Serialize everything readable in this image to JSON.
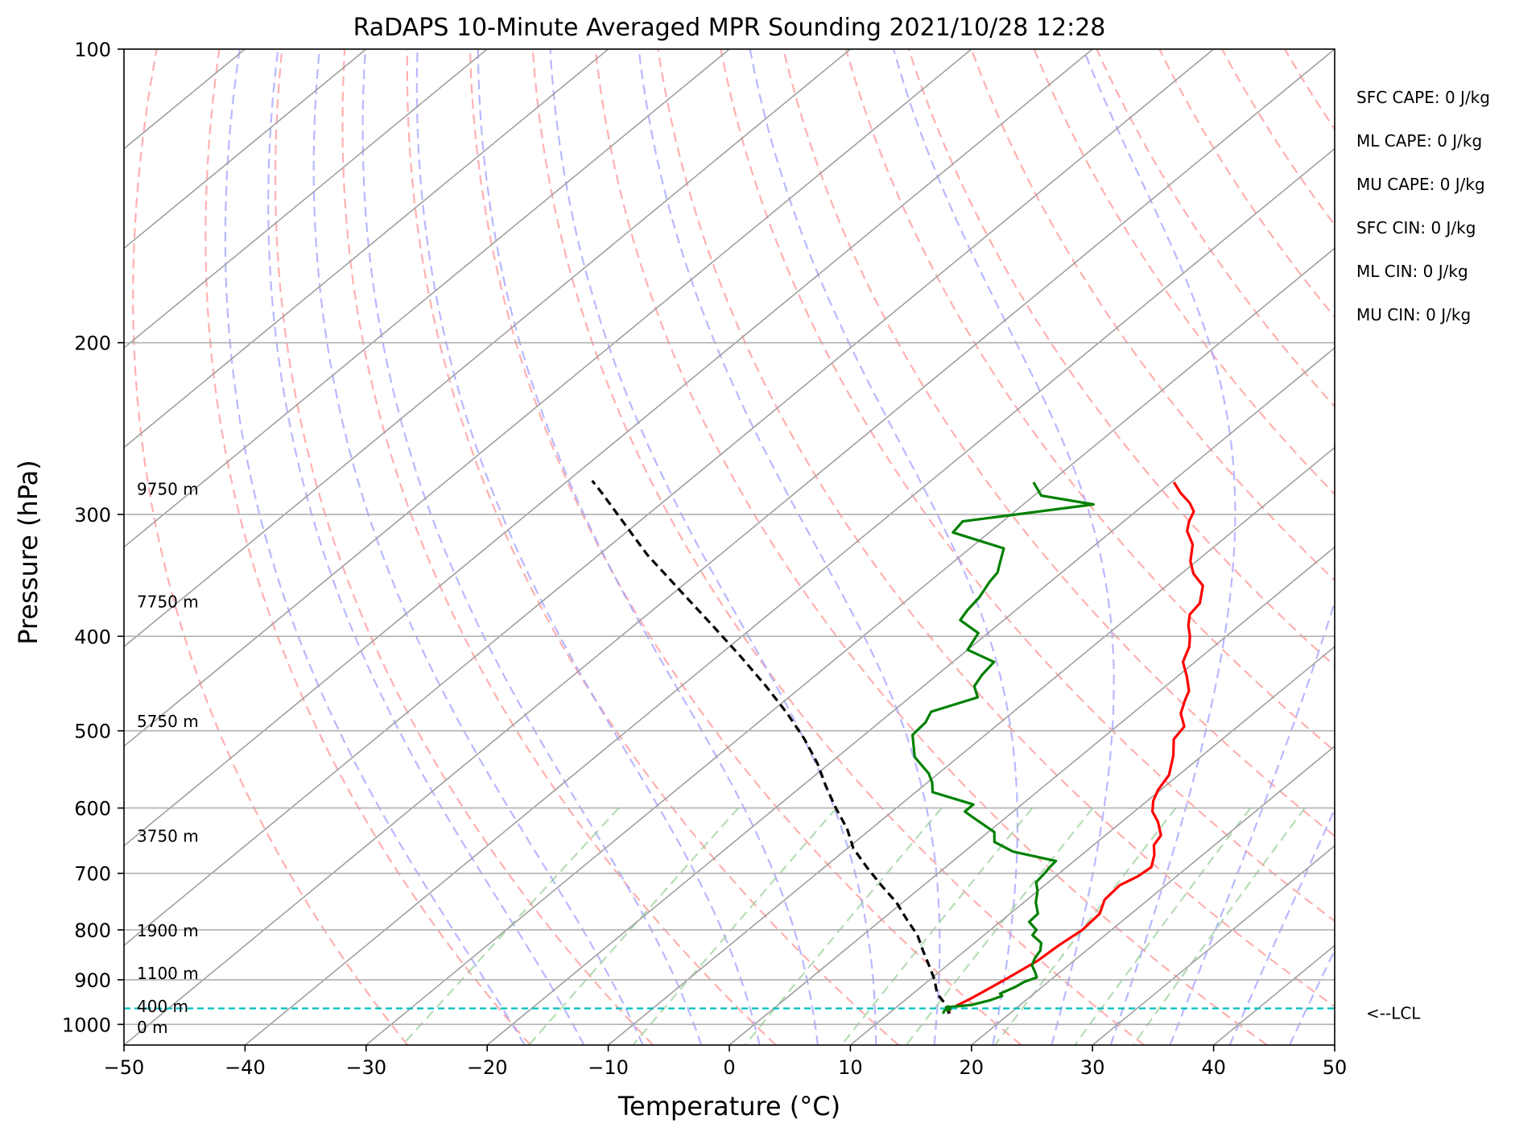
{
  "chart_data": {
    "type": "line",
    "title": "RaDAPS 10-Minute Averaged MPR Sounding 2021/10/28 12:28",
    "xlabel": "Temperature (°C)",
    "ylabel": "Pressure (hPa)",
    "xlim": [
      -50,
      50
    ],
    "ylim": [
      1050,
      100
    ],
    "y_scale": "log",
    "grid": true,
    "x_ticks": [
      -50,
      -40,
      -30,
      -20,
      -10,
      0,
      10,
      20,
      30,
      40,
      50
    ],
    "x_tick_labels": [
      "−50",
      "−40",
      "−30",
      "−20",
      "−10",
      "0",
      "10",
      "20",
      "30",
      "40",
      "50"
    ],
    "y_ticks": [
      100,
      200,
      300,
      400,
      500,
      600,
      700,
      800,
      900,
      1000
    ],
    "y_tick_labels": [
      "100",
      "200",
      "300",
      "400",
      "500",
      "600",
      "700",
      "800",
      "900",
      "1000"
    ],
    "skew": 1.0,
    "series": [
      {
        "role": "temperature",
        "color": "#ff0000",
        "points": [
          [
            15.0,
            975
          ],
          [
            14.6,
            965
          ],
          [
            15.3,
            940
          ],
          [
            16.2,
            900
          ],
          [
            17.0,
            860
          ],
          [
            17.2,
            830
          ],
          [
            17.6,
            800
          ],
          [
            17.4,
            770
          ],
          [
            16.4,
            745
          ],
          [
            16.2,
            720
          ],
          [
            16.8,
            705
          ],
          [
            17.0,
            690
          ],
          [
            16.0,
            670
          ],
          [
            15.0,
            655
          ],
          [
            14.6,
            640
          ],
          [
            13.0,
            620
          ],
          [
            11.5,
            605
          ],
          [
            10.5,
            590
          ],
          [
            9.8,
            575
          ],
          [
            9.2,
            555
          ],
          [
            7.6,
            530
          ],
          [
            6.0,
            510
          ],
          [
            5.6,
            495
          ],
          [
            4.0,
            480
          ],
          [
            3.0,
            465
          ],
          [
            2.4,
            455
          ],
          [
            0.8,
            440
          ],
          [
            -1.0,
            425
          ],
          [
            -2.0,
            410
          ],
          [
            -3.0,
            400
          ],
          [
            -4.2,
            390
          ],
          [
            -5.2,
            380
          ],
          [
            -5.5,
            370
          ],
          [
            -7.0,
            355
          ],
          [
            -9.0,
            345
          ],
          [
            -10.5,
            335
          ],
          [
            -12.0,
            322
          ],
          [
            -13.8,
            312
          ],
          [
            -14.6,
            305
          ],
          [
            -15.2,
            298
          ],
          [
            -16.4,
            292
          ],
          [
            -18.2,
            285
          ],
          [
            -19.8,
            278
          ]
        ]
      },
      {
        "role": "dewpoint",
        "color": "#008000",
        "points": [
          [
            14.5,
            975
          ],
          [
            14.3,
            968
          ],
          [
            14.3,
            965
          ],
          [
            14.3,
            960
          ],
          [
            16.0,
            955
          ],
          [
            17.0,
            945
          ],
          [
            17.6,
            935
          ],
          [
            17.2,
            930
          ],
          [
            17.8,
            915
          ],
          [
            18.0,
            905
          ],
          [
            18.6,
            895
          ],
          [
            18.0,
            885
          ],
          [
            17.0,
            870
          ],
          [
            16.5,
            855
          ],
          [
            16.2,
            840
          ],
          [
            15.5,
            825
          ],
          [
            14.0,
            810
          ],
          [
            13.8,
            800
          ],
          [
            12.4,
            785
          ],
          [
            12.3,
            770
          ],
          [
            11.0,
            750
          ],
          [
            10.0,
            730
          ],
          [
            9.0,
            715
          ],
          [
            8.8,
            700
          ],
          [
            8.6,
            690
          ],
          [
            8.5,
            680
          ],
          [
            4.0,
            665
          ],
          [
            1.5,
            650
          ],
          [
            0.5,
            635
          ],
          [
            -2.5,
            615
          ],
          [
            -4.0,
            605
          ],
          [
            -4.0,
            595
          ],
          [
            -8.6,
            578
          ],
          [
            -9.6,
            565
          ],
          [
            -10.8,
            553
          ],
          [
            -13.6,
            532
          ],
          [
            -16.0,
            505
          ],
          [
            -16.2,
            490
          ],
          [
            -16.8,
            478
          ],
          [
            -14.4,
            462
          ],
          [
            -15.8,
            450
          ],
          [
            -16.3,
            438
          ],
          [
            -16.6,
            425
          ],
          [
            -20.0,
            413
          ],
          [
            -20.8,
            397
          ],
          [
            -23.6,
            385
          ],
          [
            -24.0,
            376
          ],
          [
            -24.3,
            365
          ],
          [
            -25.0,
            352
          ],
          [
            -25.3,
            344
          ],
          [
            -26.2,
            335
          ],
          [
            -27.2,
            325
          ],
          [
            -33.0,
            313
          ],
          [
            -33.3,
            305
          ],
          [
            -24.2,
            293
          ],
          [
            -29.4,
            287
          ],
          [
            -31.4,
            278
          ]
        ]
      },
      {
        "role": "parcel",
        "color": "#000000",
        "dashed": true,
        "points": [
          [
            15.0,
            975
          ],
          [
            14.4,
            965
          ],
          [
            13.5,
            950
          ],
          [
            12.0,
            930
          ],
          [
            10.4,
            900
          ],
          [
            8.5,
            870
          ],
          [
            6.5,
            840
          ],
          [
            4.5,
            810
          ],
          [
            2.0,
            780
          ],
          [
            -0.5,
            750
          ],
          [
            -3.5,
            720
          ],
          [
            -6.5,
            690
          ],
          [
            -9.5,
            660
          ],
          [
            -12.0,
            630
          ],
          [
            -15.0,
            600
          ],
          [
            -18.0,
            570
          ],
          [
            -21.0,
            540
          ],
          [
            -24.5,
            510
          ],
          [
            -28.5,
            480
          ],
          [
            -33.0,
            450
          ],
          [
            -38.0,
            420
          ],
          [
            -43.5,
            390
          ],
          [
            -49.5,
            360
          ],
          [
            -56.0,
            330
          ],
          [
            -62.5,
            300
          ],
          [
            -66.0,
            285
          ],
          [
            -68.0,
            277
          ]
        ]
      }
    ],
    "lcl_pressure": 963,
    "lcl_label": "<--LCL",
    "height_labels": [
      {
        "text": "9750 m",
        "p": 282
      },
      {
        "text": "7750 m",
        "p": 368
      },
      {
        "text": "5750 m",
        "p": 488
      },
      {
        "text": "3750 m",
        "p": 640
      },
      {
        "text": "1900 m",
        "p": 800
      },
      {
        "text": "1100 m",
        "p": 885
      },
      {
        "text": "400 m",
        "p": 957
      },
      {
        "text": "0 m",
        "p": 1005
      }
    ],
    "indices": [
      "SFC CAPE: 0 J/kg",
      "ML CAPE: 0 J/kg",
      "MU CAPE: 0 J/kg",
      "SFC CIN: 0 J/kg",
      "ML CIN: 0 J/kg",
      "MU CIN: 0 J/kg"
    ],
    "colors": {
      "isotherm": "#a0a0a0",
      "dry_adiabat": "#ff9c9c",
      "moist_adiabat": "#a0a0ff",
      "mixing_ratio": "#8fc98f",
      "lcl": "#00bfbf"
    }
  }
}
